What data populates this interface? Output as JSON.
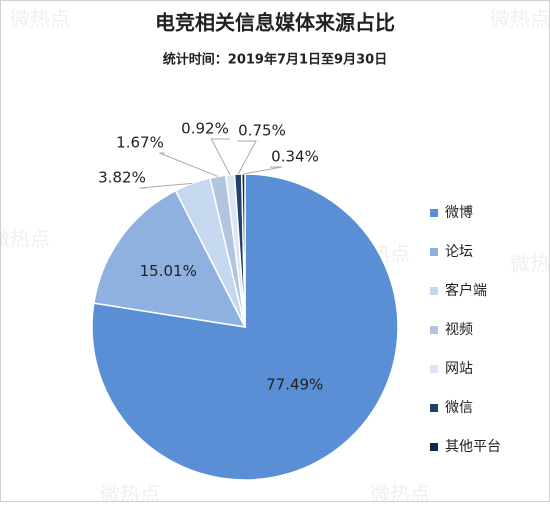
{
  "chart_data": {
    "type": "pie",
    "title": "电竞相关信息媒体来源占比",
    "subtitle": "统计时间：2019年7月1日至9月30日",
    "watermark": "微热点",
    "categories": [
      "微博",
      "论坛",
      "客户端",
      "视频",
      "网站",
      "微信",
      "其他平台"
    ],
    "values": [
      77.49,
      15.01,
      3.82,
      1.67,
      0.92,
      0.75,
      0.34
    ],
    "value_labels": [
      "77.49%",
      "15.01%",
      "3.82%",
      "1.67%",
      "0.92%",
      "0.75%",
      "0.34%"
    ],
    "colors": [
      "#5a8fd6",
      "#8fb1e0",
      "#c6d8f0",
      "#b2c5df",
      "#dbe5f3",
      "#21406b",
      "#14294a"
    ],
    "legend": "right"
  }
}
